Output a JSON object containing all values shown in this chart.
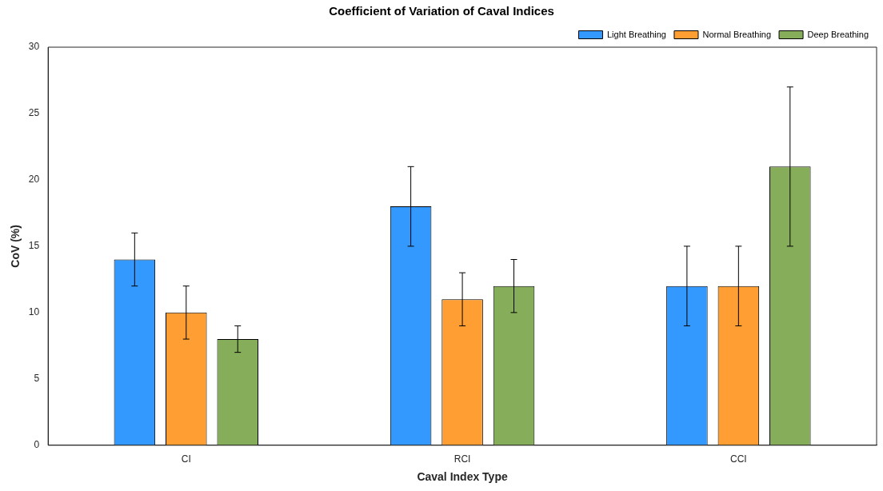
{
  "chart_data": {
    "type": "bar",
    "title": "Coefficient of Variation of Caval Indices",
    "xlabel": "Caval Index Type",
    "ylabel": "CoV (%)",
    "categories": [
      "CI",
      "RCI",
      "CCI"
    ],
    "series": [
      {
        "name": "Light Breathing",
        "color": "#3399ff",
        "values": [
          14,
          18,
          12
        ],
        "errors": [
          2,
          3,
          3
        ]
      },
      {
        "name": "Normal Breathing",
        "color": "#ff9f33",
        "values": [
          10,
          11,
          12
        ],
        "errors": [
          2,
          2,
          3
        ]
      },
      {
        "name": "Deep Breathing",
        "color": "#86ad5a",
        "values": [
          8,
          12,
          21
        ],
        "errors": [
          1,
          2,
          6
        ]
      }
    ],
    "ylim": [
      0,
      30
    ],
    "yticks": [
      0,
      5,
      10,
      15,
      20,
      25,
      30
    ],
    "grid": false,
    "legend": "top right"
  }
}
